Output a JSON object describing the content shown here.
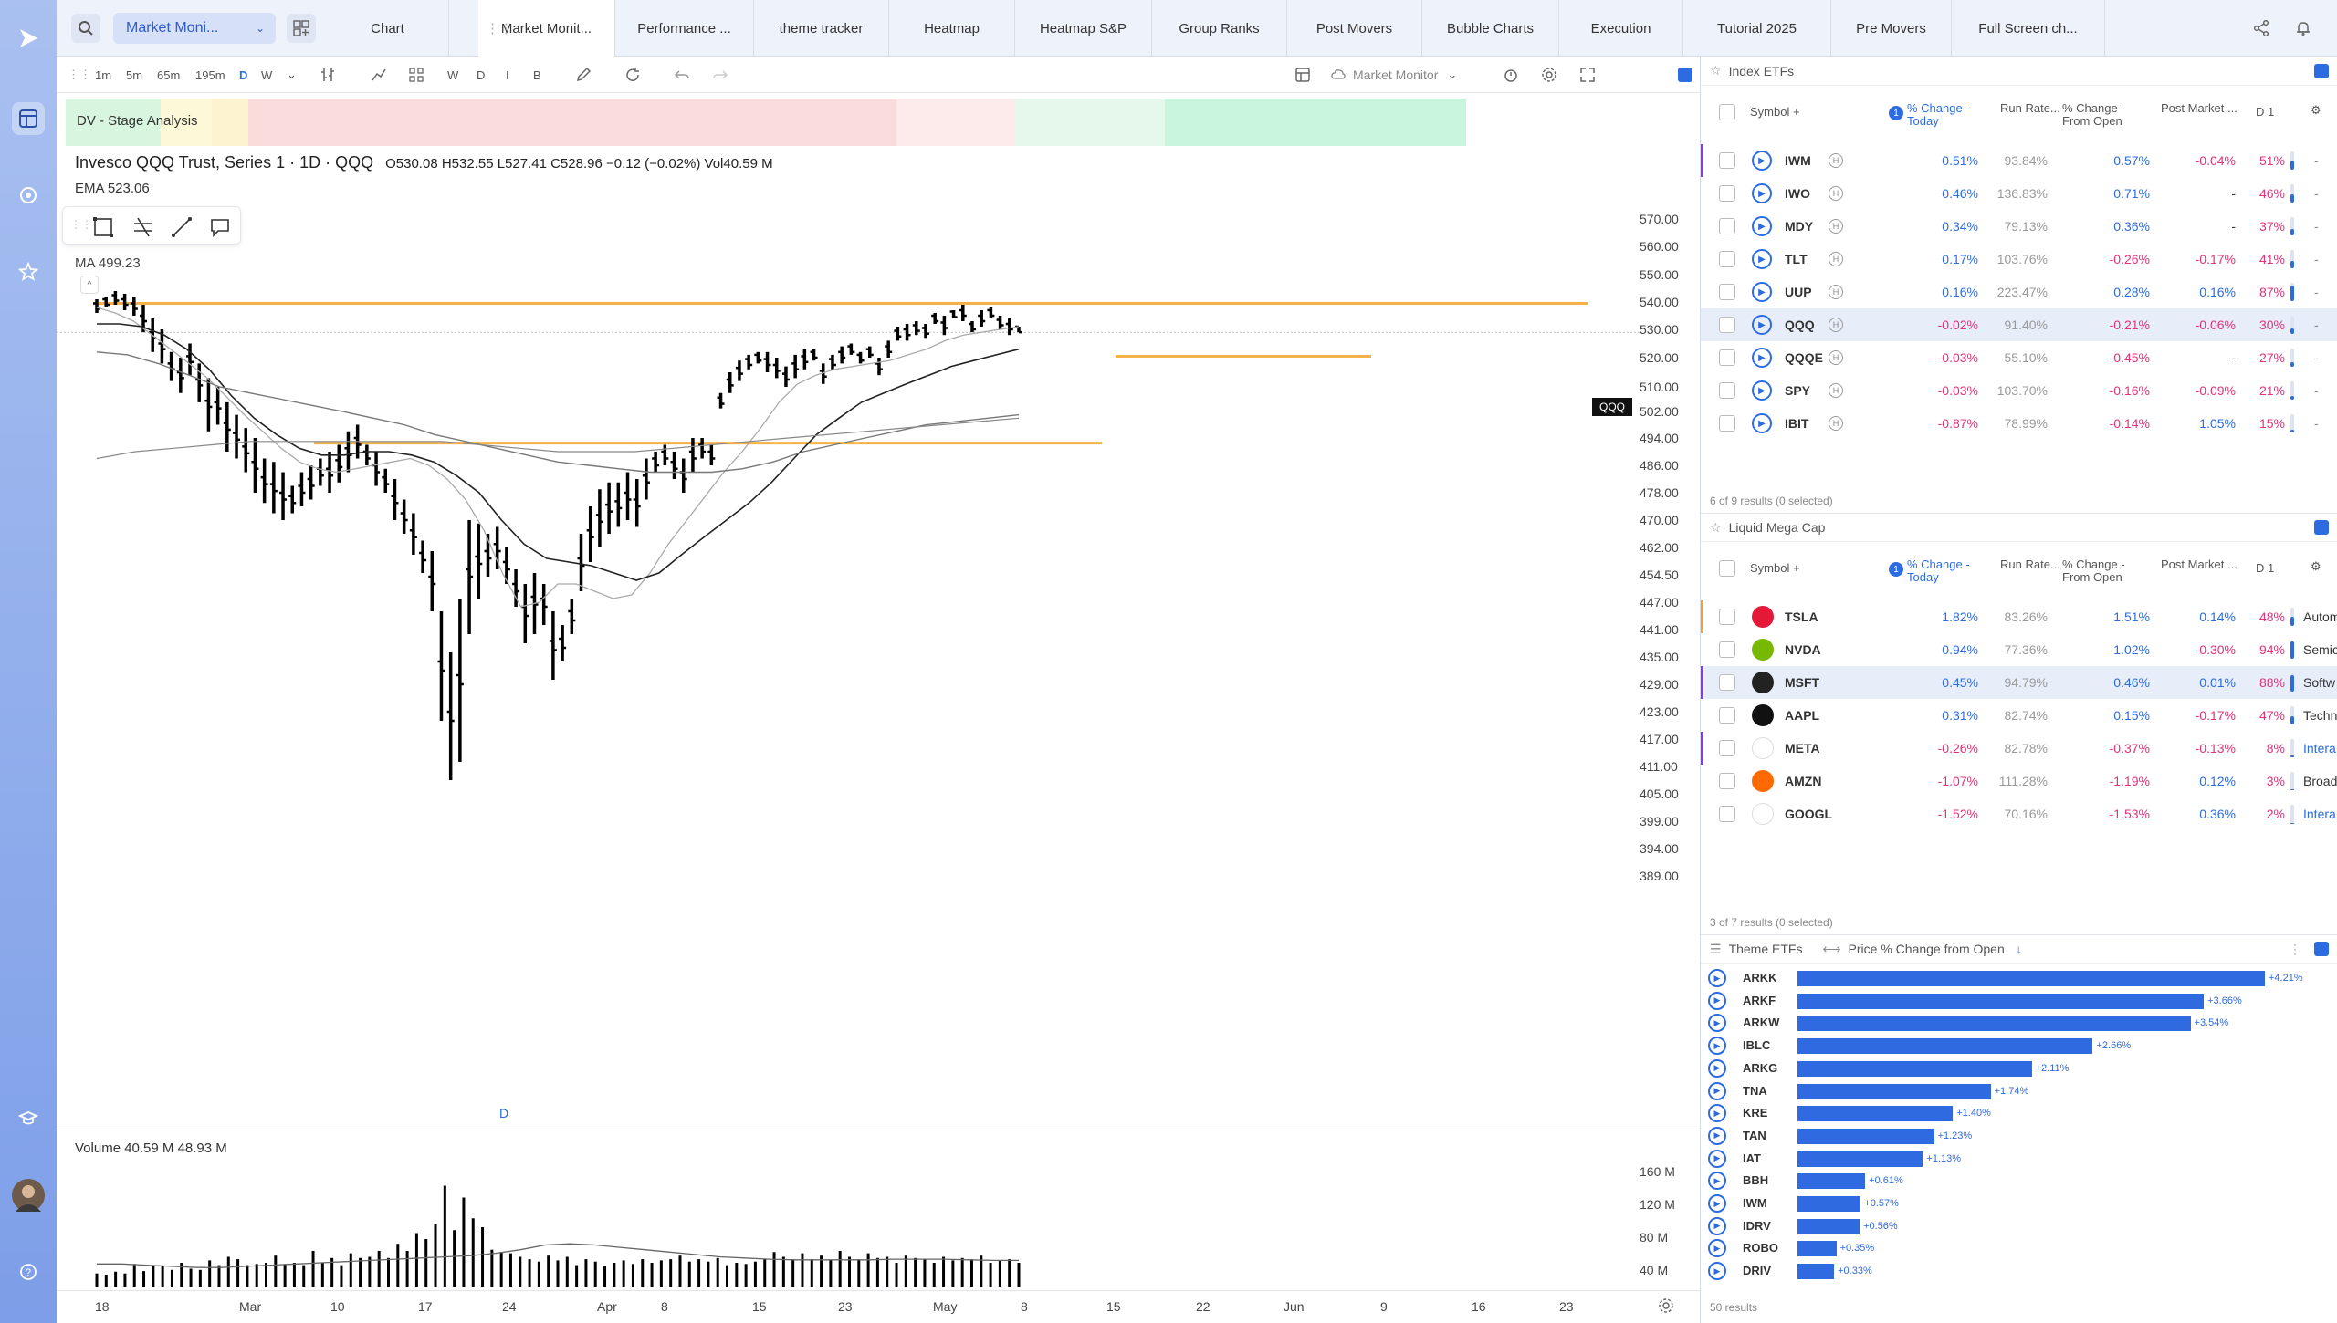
{
  "app": {
    "accent": "#2c6ce0",
    "negative": "#e0337a"
  },
  "topbar": {
    "search_icon": "search-icon",
    "layout_select": "Market Moni...",
    "tabs": [
      "Chart",
      "Market Monit...",
      "Performance ...",
      "theme tracker",
      "Heatmap",
      "Heatmap S&P",
      "Group Ranks",
      "Post Movers",
      "Bubble Charts",
      "Execution",
      "Tutorial 2025",
      "Pre Movers",
      "Full Screen ch..."
    ]
  },
  "toolbar": {
    "intervals": [
      "1m",
      "5m",
      "65m",
      "195m",
      "D",
      "W"
    ],
    "ranges": [
      "W",
      "D",
      "I",
      "B"
    ],
    "layout_name": "Market Monitor"
  },
  "chart": {
    "stage_label": "DV - Stage Analysis",
    "title": "Invesco QQQ Trust, Series 1 · 1D · QQQ",
    "ohlc": "O530.08 H532.55 L527.41 C528.96 −0.12 (−0.02%) Vol40.59 M",
    "ema_label": "EMA 523.06",
    "ma_label": "MA 499.23",
    "price_tag": "QQQ",
    "d_marker": "D",
    "volume_label": "Volume 40.59 M 48.93 M"
  },
  "chart_data": {
    "type": "candlestick",
    "y_ticks": [
      "570.00",
      "560.00",
      "550.00",
      "540.00",
      "530.00",
      "520.00",
      "510.00",
      "502.00",
      "494.00",
      "486.00",
      "478.00",
      "470.00",
      "462.00",
      "454.50",
      "447.00",
      "441.00",
      "435.00",
      "429.00",
      "423.00",
      "417.00",
      "411.00",
      "405.00",
      "399.00",
      "394.00",
      "389.00"
    ],
    "x_ticks": [
      "18",
      "Mar",
      "10",
      "17",
      "24",
      "Apr",
      "8",
      "15",
      "23",
      "May",
      "8",
      "15",
      "22",
      "Jun",
      "9",
      "16",
      "23"
    ],
    "volume_ticks": [
      "160 M",
      "120 M",
      "80 M",
      "40 M"
    ],
    "last_close": 528.96,
    "ema": 523.06,
    "ma": 499.23
  },
  "index_etfs": {
    "title": "Index ETFs",
    "headers": {
      "symbol": "Symbol",
      "change": "% Change - Today",
      "run": "Run Rate...",
      "from_open": "% Change - From Open",
      "post": "Post Market ...",
      "d": "D"
    },
    "rows": [
      {
        "sym": "IWM",
        "chg": "0.51%",
        "run": "93.84%",
        "open": "0.57%",
        "post": "-0.04%",
        "pct": "51%"
      },
      {
        "sym": "IWO",
        "chg": "0.46%",
        "run": "136.83%",
        "open": "0.71%",
        "post": "-",
        "pct": "46%"
      },
      {
        "sym": "MDY",
        "chg": "0.34%",
        "run": "79.13%",
        "open": "0.36%",
        "post": "-",
        "pct": "37%"
      },
      {
        "sym": "TLT",
        "chg": "0.17%",
        "run": "103.76%",
        "open": "-0.26%",
        "post": "-0.17%",
        "pct": "41%"
      },
      {
        "sym": "UUP",
        "chg": "0.16%",
        "run": "223.47%",
        "open": "0.28%",
        "post": "0.16%",
        "pct": "87%"
      },
      {
        "sym": "QQQ",
        "chg": "-0.02%",
        "run": "91.40%",
        "open": "-0.21%",
        "post": "-0.06%",
        "pct": "30%"
      },
      {
        "sym": "QQQE",
        "chg": "-0.03%",
        "run": "55.10%",
        "open": "-0.45%",
        "post": "-",
        "pct": "27%"
      },
      {
        "sym": "SPY",
        "chg": "-0.03%",
        "run": "103.70%",
        "open": "-0.16%",
        "post": "-0.09%",
        "pct": "21%"
      },
      {
        "sym": "IBIT",
        "chg": "-0.87%",
        "run": "78.99%",
        "open": "-0.14%",
        "post": "1.05%",
        "pct": "15%"
      }
    ],
    "footer": "6 of 9 results (0 selected)"
  },
  "mega_cap": {
    "title": "Liquid Mega Cap",
    "rows": [
      {
        "sym": "TSLA",
        "chg": "1.82%",
        "run": "83.26%",
        "open": "1.51%",
        "post": "0.14%",
        "pct": "48%",
        "sector": "Autom",
        "color": "#e31937"
      },
      {
        "sym": "NVDA",
        "chg": "0.94%",
        "run": "77.36%",
        "open": "1.02%",
        "post": "-0.30%",
        "pct": "94%",
        "sector": "Semic",
        "color": "#76b900"
      },
      {
        "sym": "MSFT",
        "chg": "0.45%",
        "run": "94.79%",
        "open": "0.46%",
        "post": "0.01%",
        "pct": "88%",
        "sector": "Softw",
        "color": "#222222"
      },
      {
        "sym": "AAPL",
        "chg": "0.31%",
        "run": "82.74%",
        "open": "0.15%",
        "post": "-0.17%",
        "pct": "47%",
        "sector": "Techn",
        "color": "#111111"
      },
      {
        "sym": "META",
        "chg": "-0.26%",
        "run": "82.78%",
        "open": "-0.37%",
        "post": "-0.13%",
        "pct": "8%",
        "sector": "Intera",
        "color": "#ffffff"
      },
      {
        "sym": "AMZN",
        "chg": "-1.07%",
        "run": "111.28%",
        "open": "-1.19%",
        "post": "0.12%",
        "pct": "3%",
        "sector": "Broad",
        "color": "#ff6a00"
      },
      {
        "sym": "GOOGL",
        "chg": "-1.52%",
        "run": "70.16%",
        "open": "-1.53%",
        "post": "0.36%",
        "pct": "2%",
        "sector": "Intera",
        "color": "#ffffff"
      }
    ],
    "footer": "3 of 7 results (0 selected)"
  },
  "theme_etfs": {
    "title": "Theme ETFs",
    "metric": "Price % Change from Open",
    "rows": [
      {
        "sym": "ARKK",
        "value": 4.21,
        "label": "+4.21%"
      },
      {
        "sym": "ARKF",
        "value": 3.66,
        "label": "+3.66%"
      },
      {
        "sym": "ARKW",
        "value": 3.54,
        "label": "+3.54%"
      },
      {
        "sym": "IBLC",
        "value": 2.66,
        "label": "+2.66%"
      },
      {
        "sym": "ARKG",
        "value": 2.11,
        "label": "+2.11%"
      },
      {
        "sym": "TNA",
        "value": 1.74,
        "label": "+1.74%"
      },
      {
        "sym": "KRE",
        "value": 1.4,
        "label": "+1.40%"
      },
      {
        "sym": "TAN",
        "value": 1.23,
        "label": "+1.23%"
      },
      {
        "sym": "IAT",
        "value": 1.13,
        "label": "+1.13%"
      },
      {
        "sym": "BBH",
        "value": 0.61,
        "label": "+0.61%"
      },
      {
        "sym": "IWM",
        "value": 0.57,
        "label": "+0.57%"
      },
      {
        "sym": "IDRV",
        "value": 0.56,
        "label": "+0.56%"
      },
      {
        "sym": "ROBO",
        "value": 0.35,
        "label": "+0.35%"
      },
      {
        "sym": "DRIV",
        "value": 0.33,
        "label": "+0.33%"
      }
    ],
    "footer": "50 results"
  }
}
